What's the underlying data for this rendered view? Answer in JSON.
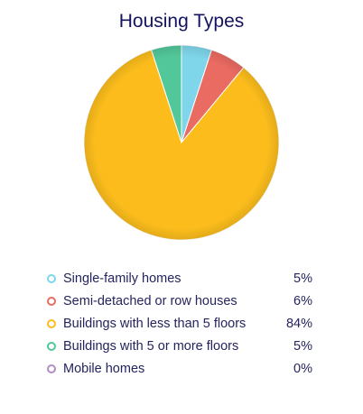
{
  "chart_data": {
    "type": "pie",
    "title": "Housing Types",
    "categories": [
      "Single-family homes",
      "Semi-detached or row houses",
      "Buildings with less than 5 floors",
      "Buildings with 5 or more floors",
      "Mobile homes"
    ],
    "values": [
      5,
      6,
      84,
      5,
      0
    ],
    "value_labels": [
      "5%",
      "6%",
      "84%",
      "5%",
      "0%"
    ],
    "colors": [
      "#7fd6ea",
      "#ea6b62",
      "#fcbd1c",
      "#52c79a",
      "#b48cc4"
    ],
    "start_angle_deg": 0,
    "direction": "clockwise",
    "legend_position": "bottom"
  }
}
